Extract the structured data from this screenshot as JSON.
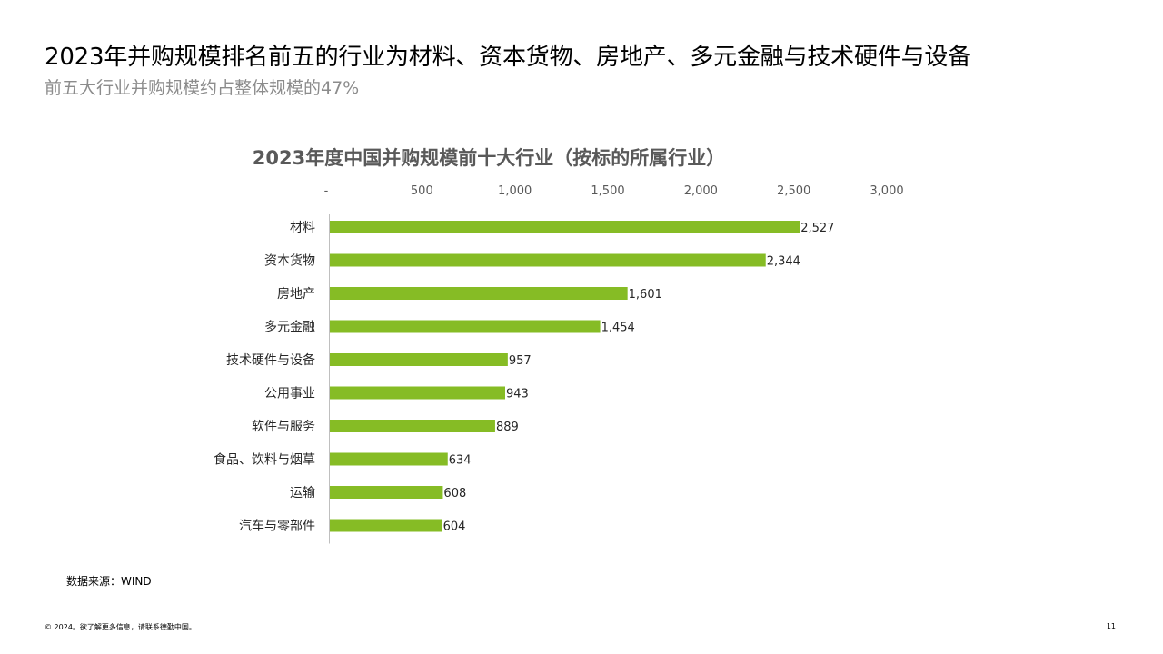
{
  "slide": {
    "headline": "2023年并购规模排名前五的行业为材料、资本货物、房地产、多元金融与技术硬件与设备",
    "subheadline": "前五大行业并购规模约占整体规模的47%",
    "source": "数据来源：WIND",
    "footer": "© 2024。欲了解更多信息，请联系德勤中国。.",
    "page_number": "11"
  },
  "colors": {
    "bar": "#86BC25",
    "axis_text": "#595959"
  },
  "chart_data": {
    "type": "bar",
    "orientation": "horizontal",
    "title": "2023年度中国并购规模前十大行业（按标的所属行业）",
    "xlim": [
      0,
      3000
    ],
    "ticks": [
      0,
      500,
      1000,
      1500,
      2000,
      2500,
      3000
    ],
    "tick_labels": [
      "-",
      "500",
      "1,000",
      "1,500",
      "2,000",
      "2,500",
      "3,000"
    ],
    "axis_position": "top",
    "grid": false,
    "legend": "none",
    "categories": [
      "材料",
      "资本货物",
      "房地产",
      "多元金融",
      "技术硬件与设备",
      "公用事业",
      "软件与服务",
      "食品、饮料与烟草",
      "运输",
      "汽车与零部件"
    ],
    "values": [
      2527,
      2344,
      1601,
      1454,
      957,
      943,
      889,
      634,
      608,
      604
    ],
    "value_labels": [
      "2,527",
      "2,344",
      "1,601",
      "1,454",
      "957",
      "943",
      "889",
      "634",
      "608",
      "604"
    ]
  }
}
